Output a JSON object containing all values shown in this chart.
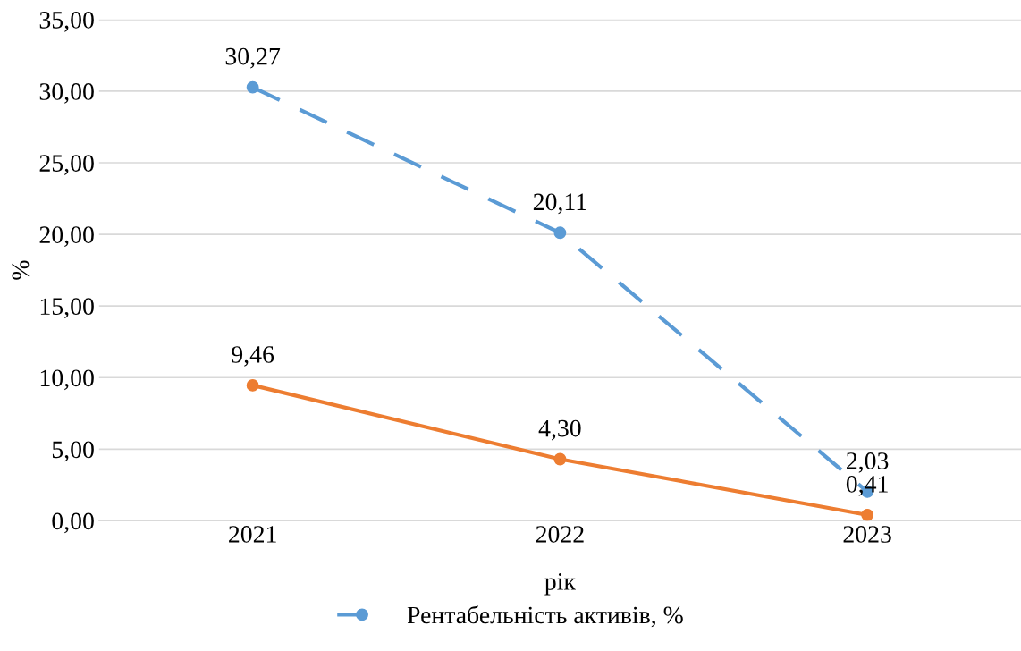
{
  "chart_data": {
    "type": "line",
    "xlabel": "рік",
    "ylabel": "%",
    "categories": [
      "2021",
      "2022",
      "2023"
    ],
    "series": [
      {
        "name": "Рентабельність активів, %",
        "color": "#5b9bd5",
        "values": [
          30.27,
          20.11,
          2.03
        ],
        "value_labels": [
          "30,27",
          "20,11",
          "2,03"
        ],
        "line_style": "dashed"
      },
      {
        "color": "#ed7d31",
        "values": [
          9.46,
          4.3,
          0.41
        ],
        "value_labels": [
          "9,46",
          "4,30",
          "0,41"
        ],
        "line_style": "solid"
      }
    ],
    "ylim": [
      0,
      35
    ],
    "yticks": [
      {
        "value": 0,
        "label": "0,00"
      },
      {
        "value": 5,
        "label": "5,00"
      },
      {
        "value": 10,
        "label": "10,00"
      },
      {
        "value": 15,
        "label": "15,00"
      },
      {
        "value": 20,
        "label": "20,00"
      },
      {
        "value": 25,
        "label": "25,00"
      },
      {
        "value": 30,
        "label": "30,00"
      },
      {
        "value": 35,
        "label": "35,00"
      }
    ],
    "grid": "y",
    "legend": "bottom",
    "marker": "circle"
  }
}
